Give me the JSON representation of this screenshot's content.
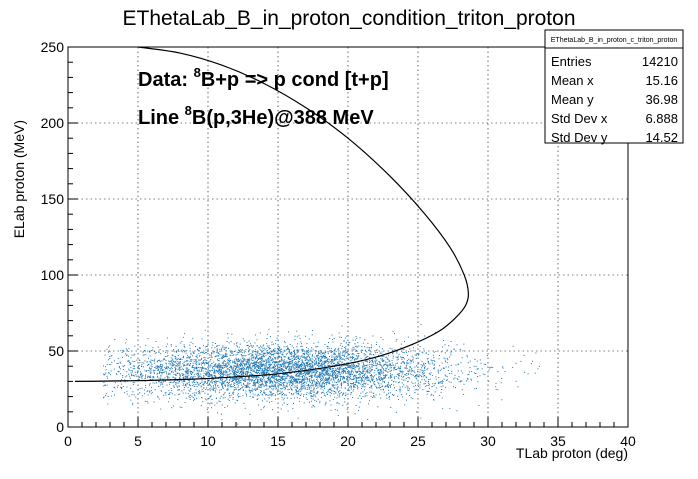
{
  "chart_data": {
    "type": "scatter",
    "title": "EThetaLab_B_in_proton_condition_triton_proton",
    "xlabel": "TLab proton (deg)",
    "ylabel": "ELab proton (MeV)",
    "xlim": [
      0,
      40
    ],
    "ylim": [
      0,
      250
    ],
    "x_ticks": [
      0,
      5,
      10,
      15,
      20,
      25,
      30,
      35,
      40
    ],
    "y_ticks": [
      0,
      50,
      100,
      150,
      200,
      250
    ],
    "grid": true,
    "annotations": [
      {
        "prefix": "Data:  ",
        "sup": "8",
        "suffix": "B+p => p cond [t+p]"
      },
      {
        "prefix": "Line  ",
        "sup": "8",
        "suffix": "B(p,3He)@388 MeV"
      }
    ],
    "stats_box": {
      "title": "EThetaLab_B_in_proton_c_triton_proton",
      "rows": [
        {
          "label": "Entries",
          "value": "14210"
        },
        {
          "label": "Mean x",
          "value": "15.16"
        },
        {
          "label": "Mean y",
          "value": "36.98"
        },
        {
          "label": "Std Dev x",
          "value": "6.888"
        },
        {
          "label": "Std Dev y",
          "value": "14.52"
        }
      ]
    },
    "scatter": {
      "color": "#1f77b4",
      "entries": 14210,
      "mean_x": 15.16,
      "mean_y": 36.98,
      "std_x": 6.888,
      "std_y": 14.52
    },
    "kinematic_line": {
      "color": "#000000",
      "points": [
        [
          5.0,
          250
        ],
        [
          8.0,
          246
        ],
        [
          11.0,
          238
        ],
        [
          14.0,
          226
        ],
        [
          17.0,
          210
        ],
        [
          20.0,
          190
        ],
        [
          23.0,
          165
        ],
        [
          25.5,
          140
        ],
        [
          27.3,
          118
        ],
        [
          28.3,
          100
        ],
        [
          28.6,
          88
        ],
        [
          28.4,
          80
        ],
        [
          27.7,
          72
        ],
        [
          26.5,
          63
        ],
        [
          24.5,
          54
        ],
        [
          22.0,
          46
        ],
        [
          19.0,
          40
        ],
        [
          15.0,
          35
        ],
        [
          12.0,
          33
        ],
        [
          9.0,
          31.5
        ],
        [
          5.0,
          30.5
        ],
        [
          2.0,
          30.1
        ],
        [
          0.5,
          30
        ]
      ]
    }
  }
}
